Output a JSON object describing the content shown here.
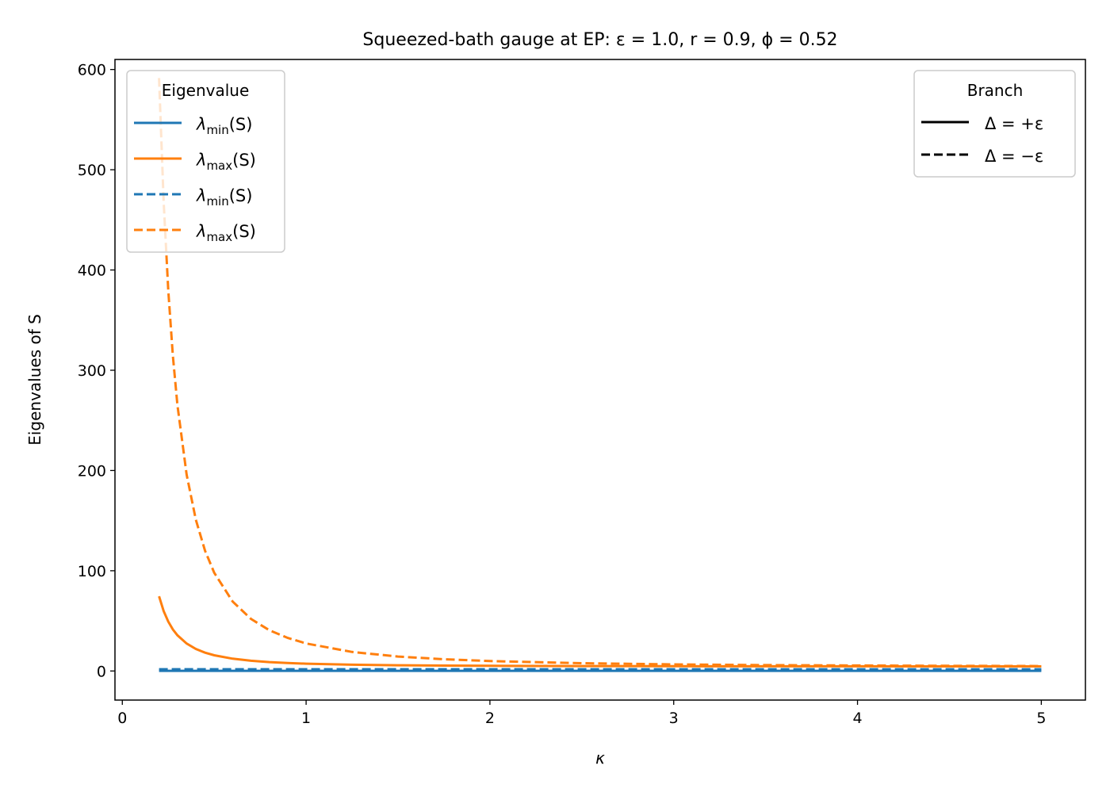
{
  "chart_data": {
    "type": "line",
    "title": "Squeezed-bath gauge at EP: ε = 1.0, r = 0.9, ϕ = 0.52",
    "xlabel": "κ",
    "ylabel": "Eigenvalues of S",
    "xlim": [
      -0.04,
      5.24
    ],
    "ylim": [
      -29,
      610
    ],
    "xticks": [
      0,
      1,
      2,
      3,
      4,
      5
    ],
    "yticks": [
      0,
      100,
      200,
      300,
      400,
      500,
      600
    ],
    "grid": false,
    "x": [
      0.2,
      0.225,
      0.25,
      0.275,
      0.3,
      0.35,
      0.4,
      0.45,
      0.5,
      0.6,
      0.7,
      0.8,
      0.9,
      1.0,
      1.25,
      1.5,
      1.75,
      2,
      2.5,
      3,
      3.5,
      4,
      4.5,
      5
    ],
    "series": [
      {
        "name": "λ_min(S)",
        "branch": "Δ = +ε",
        "color": "#1f77b4",
        "dash": "solid",
        "values": [
          0.2,
          0.2,
          0.2,
          0.2,
          0.2,
          0.2,
          0.2,
          0.2,
          0.2,
          0.2,
          0.2,
          0.2,
          0.2,
          0.2,
          0.2,
          0.2,
          0.2,
          0.2,
          0.2,
          0.2,
          0.2,
          0.2,
          0.2,
          0.2
        ]
      },
      {
        "name": "λ_max(S)",
        "branch": "Δ = +ε",
        "color": "#ff7f0e",
        "dash": "solid",
        "values": [
          74.5,
          59.8,
          49.3,
          41.5,
          35.6,
          27.4,
          22,
          18.3,
          15.7,
          12.3,
          10.2,
          8.9,
          8,
          7.3,
          6.3,
          5.7,
          5.4,
          5.2,
          4.9,
          4.8,
          4.7,
          4.7,
          4.6,
          4.6
        ]
      },
      {
        "name": "λ_min(S)",
        "branch": "Δ = −ε",
        "color": "#1f77b4",
        "dash": "dashed",
        "values": [
          1.8,
          1.8,
          1.8,
          1.8,
          1.8,
          1.8,
          1.8,
          1.8,
          1.8,
          1.8,
          1.8,
          1.8,
          1.8,
          1.8,
          1.8,
          1.8,
          1.8,
          1.8,
          1.8,
          1.8,
          1.8,
          1.8,
          1.8,
          1.8
        ]
      },
      {
        "name": "λ_max(S)",
        "branch": "Δ = −ε",
        "color": "#ff7f0e",
        "dash": "dashed",
        "values": [
          591.5,
          468.2,
          380,
          314.7,
          265.1,
          195.8,
          150.9,
          120,
          98,
          69.3,
          52,
          40.7,
          33,
          27.5,
          19,
          14.4,
          11.7,
          9.9,
          7.8,
          6.6,
          5.9,
          5.5,
          5.2,
          4.9
        ]
      }
    ],
    "legends": [
      {
        "title": "Eigenvalue",
        "placement": "upper left",
        "entries": [
          {
            "base": "λ",
            "sub": "min",
            "tail": "(S)",
            "color": "#1f77b4",
            "dash": "solid"
          },
          {
            "base": "λ",
            "sub": "max",
            "tail": "(S)",
            "color": "#ff7f0e",
            "dash": "solid"
          },
          {
            "base": "λ",
            "sub": "min",
            "tail": "(S)",
            "color": "#1f77b4",
            "dash": "dashed"
          },
          {
            "base": "λ",
            "sub": "max",
            "tail": "(S)",
            "color": "#ff7f0e",
            "dash": "dashed"
          }
        ]
      },
      {
        "title": "Branch",
        "placement": "upper right",
        "entries": [
          {
            "label": "Δ = +ε",
            "color": "#000000",
            "dash": "solid"
          },
          {
            "label": "Δ = −ε",
            "color": "#000000",
            "dash": "dashed"
          }
        ]
      }
    ]
  }
}
